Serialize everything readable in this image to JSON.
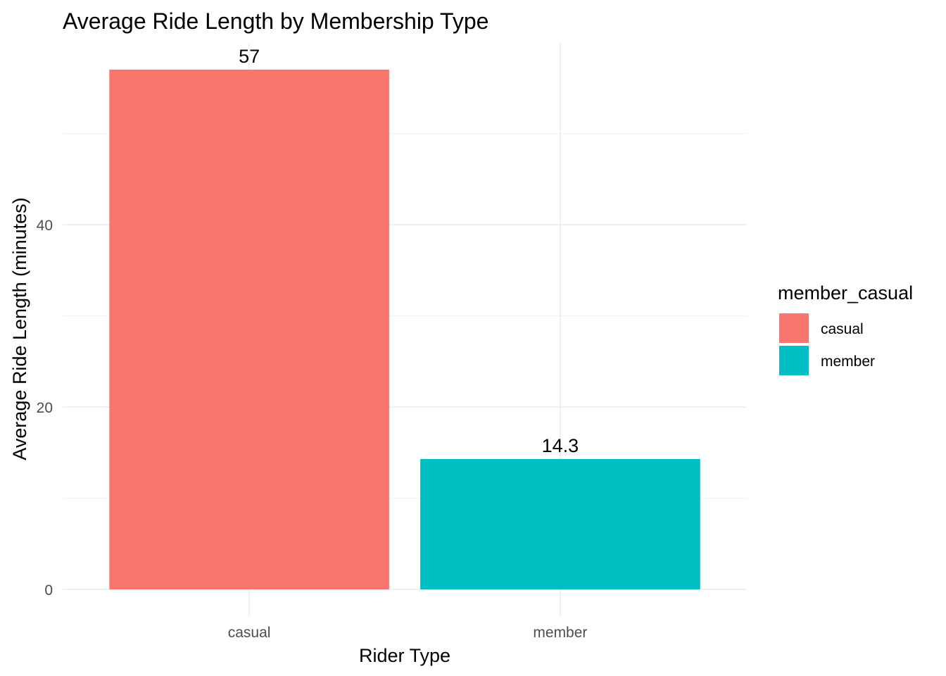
{
  "chart_data": {
    "type": "bar",
    "title": "Average Ride Length by Membership Type",
    "xlabel": "Rider Type",
    "ylabel": "Average Ride Length (minutes)",
    "categories": [
      "casual",
      "member"
    ],
    "values": [
      57,
      14.3
    ],
    "data_labels": [
      "57",
      "14.3"
    ],
    "colors": [
      "#F8766D",
      "#00BFC4"
    ],
    "ylim": [
      0,
      59.8
    ],
    "yticks": [
      0,
      20,
      40
    ],
    "ytick_labels": [
      "0",
      "20",
      "40"
    ],
    "grid": true,
    "legend": {
      "title": "member_casual",
      "position": "right",
      "entries": [
        {
          "label": "casual",
          "color": "#F8766D"
        },
        {
          "label": "member",
          "color": "#00BFC4"
        }
      ]
    }
  }
}
